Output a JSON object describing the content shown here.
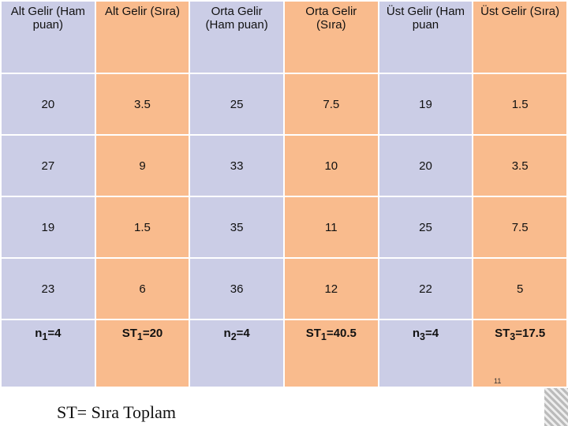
{
  "table": {
    "header": [
      "Alt Gelir (Ham puan)",
      "Alt Gelir (Sıra)",
      "Orta Gelir (Ham puan)",
      "Orta Gelir (Sıra)",
      "Üst Gelir (Ham puan",
      "Üst Gelir (Sıra)"
    ],
    "rows": [
      [
        20,
        3.5,
        25,
        7.5,
        19,
        1.5
      ],
      [
        27,
        9,
        33,
        10,
        20,
        3.5
      ],
      [
        19,
        1.5,
        35,
        11,
        25,
        7.5
      ],
      [
        23,
        6,
        36,
        12,
        22,
        5
      ]
    ],
    "totals": [
      {
        "base": "n",
        "sub": "1",
        "rest": "=4"
      },
      {
        "base": "ST",
        "sub": "1",
        "rest": "=20"
      },
      {
        "base": "n",
        "sub": "2",
        "rest": "=4"
      },
      {
        "base": "ST",
        "sub": "1",
        "rest": "=40.5"
      },
      {
        "base": "n",
        "sub": "3",
        "rest": "=4"
      },
      {
        "base": "ST",
        "sub": "3",
        "rest": "=17.5"
      }
    ]
  },
  "footer": "ST= Sıra Toplam",
  "page_number": 11
}
